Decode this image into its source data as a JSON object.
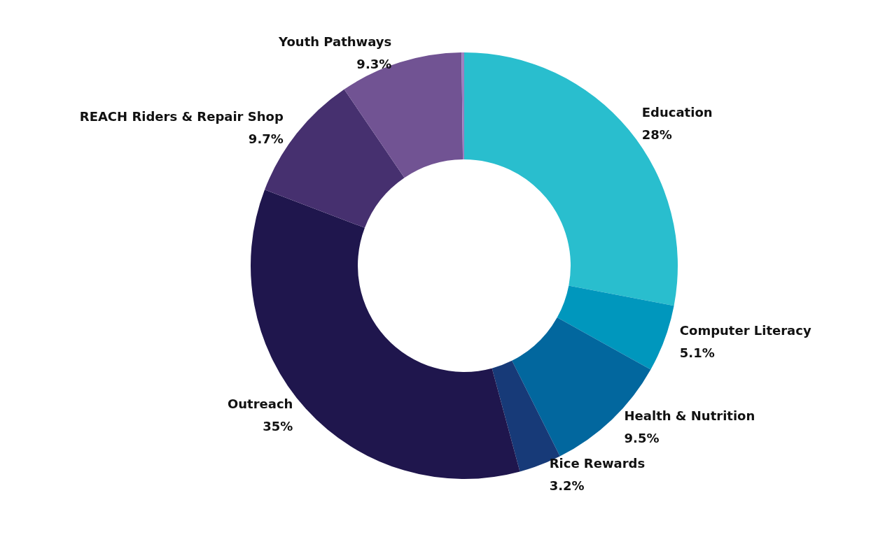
{
  "chart_data": {
    "type": "donut",
    "categories": [
      "Education",
      "Computer Literacy",
      "Health & Nutrition",
      "Rice Rewards",
      "Outreach",
      "REACH Riders & Repair Shop",
      "Youth Pathways",
      null
    ],
    "values": [
      28,
      5.1,
      9.5,
      3.2,
      35,
      9.7,
      9.3,
      0.2
    ],
    "value_labels": [
      "28%",
      "5.1%",
      "9.5%",
      "3.2%",
      "35%",
      "9.7%",
      "9.3%",
      null
    ],
    "colors": [
      "#29bece",
      "#0097bd",
      "#02679e",
      "#173a78",
      "#1f164d",
      "#46306f",
      "#715393",
      "#9b7fc0"
    ]
  }
}
